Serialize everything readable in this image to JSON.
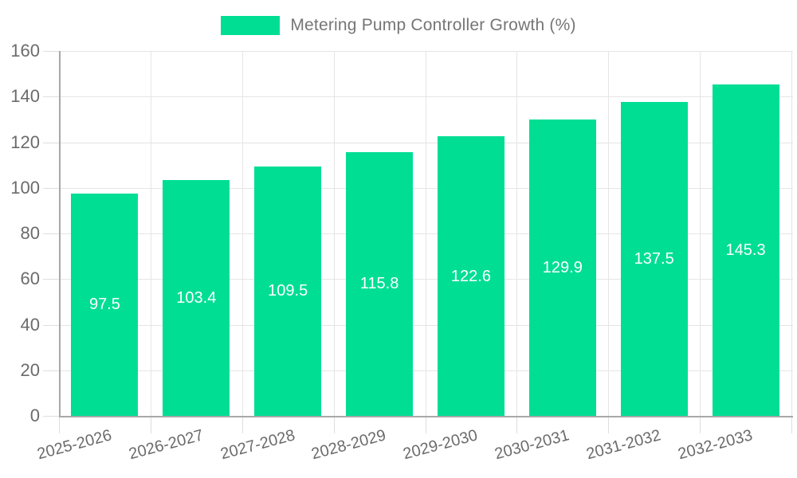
{
  "chart_data": {
    "type": "bar",
    "title": "Metering Pump Controller Growth (%)",
    "legend_position": "top",
    "categories": [
      "2025-2026",
      "2026-2027",
      "2027-2028",
      "2028-2029",
      "2029-2030",
      "2030-2031",
      "2031-2032",
      "2032-2033"
    ],
    "values": [
      97.5,
      103.4,
      109.5,
      115.8,
      122.6,
      129.9,
      137.5,
      145.3
    ],
    "xlabel": "",
    "ylabel": "",
    "ylim": [
      0,
      160
    ],
    "yticks": [
      0,
      20,
      40,
      60,
      80,
      100,
      120,
      140,
      160
    ],
    "grid": true,
    "value_label_position": "center",
    "colors": {
      "bar": "#00DE94",
      "grid": "#e5e5e5",
      "axis": "#a8a8a8",
      "tick_text": "#6b6b6b",
      "legend_text": "#757575",
      "value_label": "#ffffff"
    }
  }
}
